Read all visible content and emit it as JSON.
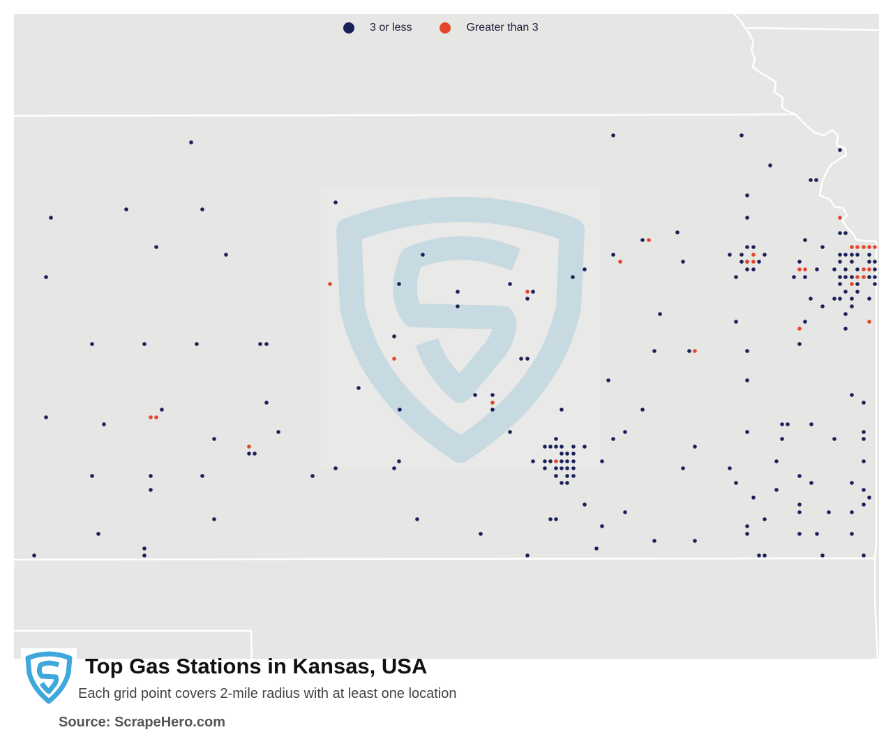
{
  "legend": {
    "items": [
      {
        "label": "3 or less",
        "color": "#1a2158"
      },
      {
        "label": "Greater than 3",
        "color": "#e5452a"
      }
    ]
  },
  "header": {
    "title": "Top Gas Stations in Kansas, USA",
    "subtitle": "Each grid point covers 2-mile radius with at least one location",
    "source": "Source: ScrapeHero.com"
  },
  "brand": {
    "logo_icon": "scrapehero-shield-icon",
    "watermark_icon": "scrapehero-shield-watermark-icon",
    "logo_color": "#3fa7dc",
    "watermark_color": "#c7d9e1",
    "map_background": "#e6e6e5",
    "border_color": "#ffffff"
  },
  "map_points": {
    "low": [
      [
        274,
        204
      ],
      [
        879,
        194
      ],
      [
        1063,
        194
      ],
      [
        1104,
        237
      ],
      [
        1204,
        215
      ],
      [
        1162,
        258
      ],
      [
        1170,
        258
      ],
      [
        481,
        290
      ],
      [
        181,
        300
      ],
      [
        290,
        300
      ],
      [
        73,
        312
      ],
      [
        1071,
        280
      ],
      [
        1071,
        312
      ],
      [
        971,
        333
      ],
      [
        224,
        354
      ],
      [
        324,
        365
      ],
      [
        606,
        365
      ],
      [
        921,
        344
      ],
      [
        1154,
        344
      ],
      [
        1204,
        334
      ],
      [
        1212,
        334
      ],
      [
        1071,
        354
      ],
      [
        1080,
        354
      ],
      [
        1063,
        365
      ],
      [
        1096,
        365
      ],
      [
        1046,
        365
      ],
      [
        1071,
        375
      ],
      [
        1063,
        375
      ],
      [
        1088,
        375
      ],
      [
        1071,
        386
      ],
      [
        1080,
        386
      ],
      [
        1055,
        397
      ],
      [
        879,
        365
      ],
      [
        979,
        375
      ],
      [
        838,
        386
      ],
      [
        821,
        397
      ],
      [
        1179,
        354
      ],
      [
        1146,
        375
      ],
      [
        1171,
        386
      ],
      [
        1212,
        365
      ],
      [
        1204,
        365
      ],
      [
        1221,
        365
      ],
      [
        1229,
        365
      ],
      [
        1246,
        365
      ],
      [
        1204,
        375
      ],
      [
        1221,
        375
      ],
      [
        1246,
        375
      ],
      [
        1254,
        375
      ],
      [
        1212,
        386
      ],
      [
        1229,
        386
      ],
      [
        1254,
        386
      ],
      [
        1196,
        386
      ],
      [
        1204,
        397
      ],
      [
        1212,
        397
      ],
      [
        1221,
        397
      ],
      [
        1246,
        397
      ],
      [
        1254,
        397
      ],
      [
        1138,
        397
      ],
      [
        1154,
        397
      ],
      [
        1204,
        407
      ],
      [
        1229,
        407
      ],
      [
        1254,
        407
      ],
      [
        1212,
        418
      ],
      [
        1229,
        418
      ],
      [
        1162,
        428
      ],
      [
        1196,
        428
      ],
      [
        1204,
        428
      ],
      [
        1221,
        428
      ],
      [
        1246,
        428
      ],
      [
        1179,
        439
      ],
      [
        1221,
        439
      ],
      [
        1212,
        450
      ],
      [
        1154,
        461
      ],
      [
        1212,
        471
      ],
      [
        1146,
        493
      ],
      [
        66,
        397
      ],
      [
        572,
        407
      ],
      [
        731,
        407
      ],
      [
        764,
        418
      ],
      [
        656,
        418
      ],
      [
        756,
        428
      ],
      [
        656,
        439
      ],
      [
        946,
        450
      ],
      [
        1055,
        461
      ],
      [
        132,
        493
      ],
      [
        207,
        493
      ],
      [
        282,
        493
      ],
      [
        373,
        493
      ],
      [
        382,
        493
      ],
      [
        565,
        482
      ],
      [
        747,
        514
      ],
      [
        756,
        514
      ],
      [
        938,
        503
      ],
      [
        988,
        503
      ],
      [
        1071,
        503
      ],
      [
        872,
        545
      ],
      [
        1071,
        545
      ],
      [
        514,
        556
      ],
      [
        681,
        566
      ],
      [
        706,
        566
      ],
      [
        1221,
        566
      ],
      [
        1238,
        577
      ],
      [
        232,
        587
      ],
      [
        382,
        577
      ],
      [
        573,
        587
      ],
      [
        706,
        587
      ],
      [
        805,
        587
      ],
      [
        921,
        587
      ],
      [
        66,
        598
      ],
      [
        149,
        608
      ],
      [
        399,
        619
      ],
      [
        731,
        619
      ],
      [
        896,
        619
      ],
      [
        1071,
        619
      ],
      [
        1121,
        608
      ],
      [
        1129,
        608
      ],
      [
        1163,
        608
      ],
      [
        1238,
        619
      ],
      [
        307,
        629
      ],
      [
        879,
        629
      ],
      [
        1121,
        629
      ],
      [
        1196,
        629
      ],
      [
        1238,
        629
      ],
      [
        797,
        629
      ],
      [
        357,
        650
      ],
      [
        365,
        650
      ],
      [
        781,
        640
      ],
      [
        789,
        640
      ],
      [
        797,
        640
      ],
      [
        805,
        640
      ],
      [
        822,
        640
      ],
      [
        838,
        640
      ],
      [
        764,
        661
      ],
      [
        781,
        661
      ],
      [
        789,
        661
      ],
      [
        805,
        661
      ],
      [
        813,
        661
      ],
      [
        822,
        661
      ],
      [
        805,
        650
      ],
      [
        813,
        650
      ],
      [
        822,
        650
      ],
      [
        781,
        671
      ],
      [
        797,
        671
      ],
      [
        805,
        671
      ],
      [
        813,
        671
      ],
      [
        822,
        671
      ],
      [
        797,
        682
      ],
      [
        813,
        682
      ],
      [
        822,
        682
      ],
      [
        805,
        692
      ],
      [
        813,
        692
      ],
      [
        863,
        661
      ],
      [
        996,
        640
      ],
      [
        979,
        671
      ],
      [
        1046,
        671
      ],
      [
        1113,
        661
      ],
      [
        1146,
        682
      ],
      [
        1163,
        692
      ],
      [
        1238,
        661
      ],
      [
        132,
        682
      ],
      [
        216,
        682
      ],
      [
        290,
        682
      ],
      [
        448,
        682
      ],
      [
        481,
        671
      ],
      [
        565,
        671
      ],
      [
        572,
        661
      ],
      [
        216,
        702
      ],
      [
        1055,
        692
      ],
      [
        1080,
        713
      ],
      [
        1113,
        702
      ],
      [
        1221,
        692
      ],
      [
        1238,
        702
      ],
      [
        1246,
        713
      ],
      [
        1238,
        723
      ],
      [
        838,
        723
      ],
      [
        1146,
        723
      ],
      [
        1146,
        734
      ],
      [
        1188,
        734
      ],
      [
        1221,
        734
      ],
      [
        307,
        744
      ],
      [
        598,
        744
      ],
      [
        789,
        744
      ],
      [
        797,
        744
      ],
      [
        896,
        734
      ],
      [
        1096,
        744
      ],
      [
        1071,
        754
      ],
      [
        141,
        765
      ],
      [
        689,
        765
      ],
      [
        863,
        754
      ],
      [
        1071,
        765
      ],
      [
        1146,
        765
      ],
      [
        1171,
        765
      ],
      [
        1221,
        765
      ],
      [
        938,
        775
      ],
      [
        996,
        775
      ],
      [
        207,
        786
      ],
      [
        207,
        796
      ],
      [
        49,
        796
      ],
      [
        756,
        796
      ],
      [
        855,
        786
      ],
      [
        1088,
        796
      ],
      [
        1096,
        796
      ],
      [
        1179,
        796
      ],
      [
        1238,
        796
      ]
    ],
    "high": [
      [
        930,
        344
      ],
      [
        889,
        375
      ],
      [
        1080,
        365
      ],
      [
        1071,
        375
      ],
      [
        1080,
        375
      ],
      [
        1146,
        386
      ],
      [
        1154,
        386
      ],
      [
        1204,
        312
      ],
      [
        1221,
        354
      ],
      [
        1229,
        354
      ],
      [
        1238,
        354
      ],
      [
        1246,
        354
      ],
      [
        1254,
        354
      ],
      [
        1238,
        386
      ],
      [
        1246,
        386
      ],
      [
        1229,
        397
      ],
      [
        1238,
        397
      ],
      [
        1221,
        407
      ],
      [
        473,
        407
      ],
      [
        756,
        418
      ],
      [
        1246,
        461
      ],
      [
        1146,
        471
      ],
      [
        996,
        503
      ],
      [
        565,
        514
      ],
      [
        706,
        577
      ],
      [
        216,
        598
      ],
      [
        224,
        598
      ],
      [
        357,
        640
      ],
      [
        797,
        661
      ]
    ]
  }
}
